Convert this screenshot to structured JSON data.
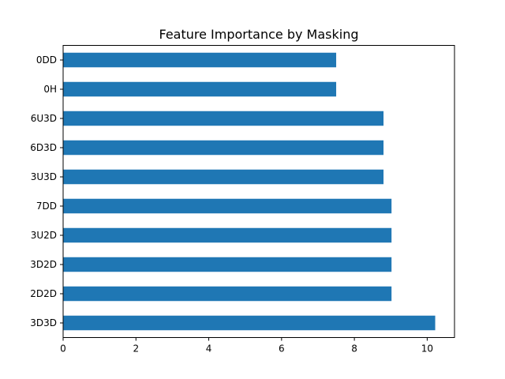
{
  "chart_data": {
    "type": "bar",
    "orientation": "horizontal",
    "title": "Feature Importance by Masking",
    "xlabel": "",
    "ylabel": "",
    "categories": [
      "0DD",
      "0H",
      "6U3D",
      "6D3D",
      "3U3D",
      "7DD",
      "3U2D",
      "3D2D",
      "2D2D",
      "3D3D"
    ],
    "values": [
      7.5,
      7.5,
      8.8,
      8.8,
      8.8,
      9.02,
      9.02,
      9.02,
      9.02,
      10.22
    ],
    "xlim": [
      0,
      10.75
    ],
    "xticks": [
      0,
      2,
      4,
      6,
      8,
      10
    ],
    "grid": false,
    "bar_color": "#1f77b4"
  }
}
